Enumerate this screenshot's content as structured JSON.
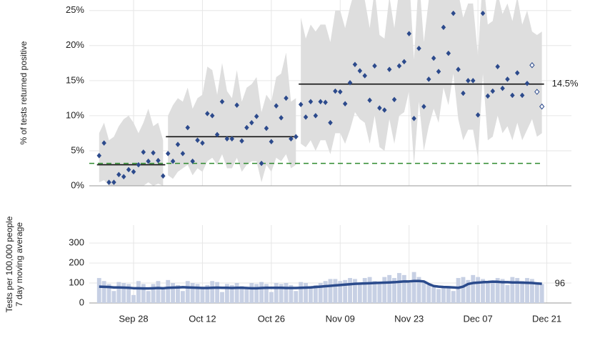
{
  "chart_data": [
    {
      "type": "scatter",
      "ylabel": "% of tests returned positive",
      "x": [
        "Sep 21",
        "Sep 22",
        "Sep 23",
        "Sep 24",
        "Sep 25",
        "Sep 26",
        "Sep 27",
        "Sep 28",
        "Sep 29",
        "Sep 30",
        "Oct 01",
        "Oct 02",
        "Oct 03",
        "Oct 04",
        "Oct 05",
        "Oct 06",
        "Oct 07",
        "Oct 08",
        "Oct 09",
        "Oct 10",
        "Oct 11",
        "Oct 12",
        "Oct 13",
        "Oct 14",
        "Oct 15",
        "Oct 16",
        "Oct 17",
        "Oct 18",
        "Oct 19",
        "Oct 20",
        "Oct 21",
        "Oct 22",
        "Oct 23",
        "Oct 24",
        "Oct 25",
        "Oct 26",
        "Oct 27",
        "Oct 28",
        "Oct 29",
        "Oct 30",
        "Oct 31",
        "Nov 01",
        "Nov 02",
        "Nov 03",
        "Nov 04",
        "Nov 05",
        "Nov 06",
        "Nov 07",
        "Nov 08",
        "Nov 09",
        "Nov 10",
        "Nov 11",
        "Nov 12",
        "Nov 13",
        "Nov 14",
        "Nov 15",
        "Nov 16",
        "Nov 17",
        "Nov 18",
        "Nov 19",
        "Nov 20",
        "Nov 21",
        "Nov 22",
        "Nov 23",
        "Nov 24",
        "Nov 25",
        "Nov 26",
        "Nov 27",
        "Nov 28",
        "Nov 29",
        "Nov 30",
        "Dec 01",
        "Dec 02",
        "Dec 03",
        "Dec 04",
        "Dec 05",
        "Dec 06",
        "Dec 07",
        "Dec 08",
        "Dec 09",
        "Dec 10",
        "Dec 11",
        "Dec 12",
        "Dec 13",
        "Dec 14",
        "Dec 15",
        "Dec 16",
        "Dec 17",
        "Dec 18",
        "Dec 19",
        "Dec 20"
      ],
      "values": [
        4.3,
        6.1,
        0.5,
        0.5,
        1.6,
        1.3,
        2.3,
        2.0,
        3.0,
        4.8,
        3.5,
        4.7,
        3.6,
        1.4,
        4.6,
        3.5,
        5.9,
        4.6,
        8.3,
        3.5,
        6.5,
        6.1,
        10.3,
        10.0,
        7.3,
        12.0,
        6.7,
        6.7,
        11.5,
        6.4,
        8.3,
        9.0,
        9.9,
        3.2,
        8.2,
        6.3,
        11.4,
        9.7,
        12.5,
        6.7,
        7.0,
        11.6,
        9.8,
        12.0,
        10.0,
        12.0,
        11.9,
        9.0,
        13.5,
        13.4,
        11.7,
        14.7,
        17.3,
        16.4,
        15.7,
        12.2,
        17.1,
        11.1,
        10.8,
        16.6,
        12.3,
        17.1,
        17.7,
        21.7,
        9.6,
        19.6,
        11.3,
        15.2,
        18.2,
        16.3,
        22.6,
        18.9,
        24.6,
        16.6,
        13.2,
        15.0,
        15.0,
        10.1,
        24.6,
        12.8,
        13.5,
        17.0,
        13.9,
        15.2,
        12.9,
        16.1,
        12.9,
        14.6,
        17.2,
        13.4,
        11.3
      ],
      "band_lower": [
        0.5,
        0.8,
        0,
        0,
        0,
        0,
        0,
        0,
        0,
        0,
        0.5,
        0,
        0.3,
        0,
        1.5,
        1.0,
        2.0,
        2.5,
        3.0,
        1.5,
        2.5,
        2.0,
        3.5,
        4.0,
        3.0,
        4.5,
        2.5,
        2.5,
        4.0,
        2.0,
        3.0,
        3.5,
        3.5,
        0.5,
        3.0,
        2.0,
        4.0,
        3.5,
        4.5,
        2.5,
        3.0,
        6.0,
        5.5,
        6.5,
        5.0,
        6.5,
        6.5,
        4.5,
        7.5,
        7.5,
        6.0,
        8.0,
        10.5,
        9.5,
        9.0,
        6.0,
        10.0,
        5.5,
        5.0,
        9.5,
        6.0,
        10.0,
        10.5,
        13.5,
        3.0,
        12.0,
        5.0,
        8.5,
        11.0,
        9.0,
        14.0,
        11.5,
        16.0,
        9.5,
        6.5,
        8.0,
        8.0,
        4.0,
        16.0,
        6.5,
        7.0,
        10.0,
        7.5,
        8.5,
        6.5,
        9.0,
        6.5,
        8.0,
        9.5,
        7.0,
        7.5
      ],
      "band_upper": [
        7.5,
        9.0,
        6.5,
        7.0,
        8.5,
        9.5,
        10.0,
        9.0,
        7.5,
        9.0,
        11.0,
        8.5,
        9.0,
        6.5,
        10.0,
        11.5,
        12.5,
        12.0,
        14.0,
        11.0,
        12.5,
        13.0,
        17.0,
        16.5,
        13.0,
        17.5,
        13.5,
        12.5,
        16.5,
        12.0,
        14.0,
        14.5,
        15.5,
        10.5,
        13.0,
        12.0,
        15.5,
        16.0,
        19.0,
        12.0,
        12.5,
        24.0,
        21.0,
        23.0,
        22.0,
        23.0,
        23.0,
        20.5,
        25.0,
        25.0,
        22.5,
        25.5,
        28.0,
        27.5,
        26.5,
        22.5,
        28.0,
        21.5,
        21.0,
        27.0,
        22.5,
        28.0,
        28.5,
        30.0,
        18.0,
        30.0,
        20.5,
        26.5,
        29.5,
        27.0,
        30.0,
        30.0,
        30.0,
        27.5,
        24.0,
        26.0,
        26.0,
        18.5,
        30.0,
        23.0,
        23.5,
        27.5,
        24.5,
        26.0,
        23.5,
        27.0,
        23.0,
        25.0,
        22.0,
        21.5,
        22.0
      ],
      "color": "#2c4a8c",
      "band_color": "#dedede",
      "open_markers": [
        88,
        89,
        90
      ],
      "segments": [
        {
          "start": "Sep 21",
          "end": "Oct 04",
          "value": 3.0
        },
        {
          "start": "Oct 05",
          "end": "Oct 31",
          "value": 7.0
        },
        {
          "start": "Nov 01",
          "end": "Dec 20",
          "value": 14.5,
          "label": "14.5%"
        }
      ],
      "reference_line": {
        "value": 3.2,
        "start": "Sep 19",
        "end": "Dec 20",
        "color": "#2e8b2e"
      },
      "xlim": [
        "Sep 19",
        "Dec 26"
      ],
      "ylim": [
        0,
        26.5
      ],
      "yticks": [
        {
          "value": 0,
          "label": "0%"
        },
        {
          "value": 5,
          "label": "5%"
        },
        {
          "value": 10,
          "label": "10%"
        },
        {
          "value": 15,
          "label": "15%"
        },
        {
          "value": 20,
          "label": "20%"
        },
        {
          "value": 25,
          "label": "25%"
        }
      ],
      "grid": true
    },
    {
      "type": "combo",
      "ylabel": [
        "Tests per 100,000 people",
        "7 day moving average"
      ],
      "x": [
        "Sep 21",
        "Sep 22",
        "Sep 23",
        "Sep 24",
        "Sep 25",
        "Sep 26",
        "Sep 27",
        "Sep 28",
        "Sep 29",
        "Sep 30",
        "Oct 01",
        "Oct 02",
        "Oct 03",
        "Oct 04",
        "Oct 05",
        "Oct 06",
        "Oct 07",
        "Oct 08",
        "Oct 09",
        "Oct 10",
        "Oct 11",
        "Oct 12",
        "Oct 13",
        "Oct 14",
        "Oct 15",
        "Oct 16",
        "Oct 17",
        "Oct 18",
        "Oct 19",
        "Oct 20",
        "Oct 21",
        "Oct 22",
        "Oct 23",
        "Oct 24",
        "Oct 25",
        "Oct 26",
        "Oct 27",
        "Oct 28",
        "Oct 29",
        "Oct 30",
        "Oct 31",
        "Nov 01",
        "Nov 02",
        "Nov 03",
        "Nov 04",
        "Nov 05",
        "Nov 06",
        "Nov 07",
        "Nov 08",
        "Nov 09",
        "Nov 10",
        "Nov 11",
        "Nov 12",
        "Nov 13",
        "Nov 14",
        "Nov 15",
        "Nov 16",
        "Nov 17",
        "Nov 18",
        "Nov 19",
        "Nov 20",
        "Nov 21",
        "Nov 22",
        "Nov 23",
        "Nov 24",
        "Nov 25",
        "Nov 26",
        "Nov 27",
        "Nov 28",
        "Nov 29",
        "Nov 30",
        "Dec 01",
        "Dec 02",
        "Dec 03",
        "Dec 04",
        "Dec 05",
        "Dec 06",
        "Dec 07",
        "Dec 08",
        "Dec 09",
        "Dec 10",
        "Dec 11",
        "Dec 12",
        "Dec 13",
        "Dec 14",
        "Dec 15",
        "Dec 16",
        "Dec 17",
        "Dec 18",
        "Dec 19",
        "Dec 20"
      ],
      "series": [
        {
          "type": "bar",
          "color": "#c7d0e4",
          "values": [
            125,
            110,
            95,
            60,
            105,
            100,
            95,
            40,
            110,
            95,
            60,
            95,
            110,
            70,
            115,
            100,
            90,
            60,
            110,
            100,
            95,
            75,
            90,
            110,
            105,
            55,
            95,
            90,
            100,
            85,
            70,
            100,
            95,
            105,
            95,
            55,
            100,
            95,
            100,
            90,
            60,
            105,
            100,
            85,
            90,
            100,
            110,
            120,
            120,
            110,
            115,
            125,
            120,
            100,
            125,
            130,
            110,
            95,
            130,
            140,
            125,
            150,
            140,
            100,
            155,
            130,
            110,
            90,
            80,
            70,
            75,
            85,
            60,
            125,
            130,
            115,
            140,
            130,
            120,
            110,
            100,
            125,
            120,
            90,
            130,
            125,
            110,
            125,
            120,
            100,
            95
          ]
        },
        {
          "type": "line",
          "color": "#2b4b8c",
          "values": [
            82,
            81,
            80,
            78,
            78,
            77,
            76,
            74,
            74,
            73,
            73,
            74,
            75,
            74,
            76,
            77,
            78,
            79,
            78,
            77,
            76,
            75,
            75,
            76,
            77,
            76,
            76,
            75,
            76,
            76,
            75,
            74,
            74,
            75,
            76,
            76,
            76,
            76,
            75,
            75,
            75,
            76,
            77,
            78,
            80,
            82,
            84,
            86,
            88,
            90,
            92,
            94,
            96,
            97,
            98,
            99,
            100,
            101,
            102,
            103,
            104,
            106,
            108,
            108,
            110,
            110,
            108,
            95,
            85,
            82,
            80,
            79,
            78,
            76,
            82,
            95,
            100,
            102,
            104,
            105,
            107,
            106,
            104,
            104,
            103,
            103,
            102,
            101,
            100,
            98,
            96
          ]
        }
      ],
      "xlim": [
        "Sep 19",
        "Dec 26"
      ],
      "ylim": [
        0,
        390
      ],
      "xticks": [
        "Sep 28",
        "Oct 12",
        "Oct 26",
        "Nov 09",
        "Nov 23",
        "Dec 07",
        "Dec 21"
      ],
      "yticks": [
        0,
        100,
        200,
        300
      ],
      "grid": true
    }
  ]
}
